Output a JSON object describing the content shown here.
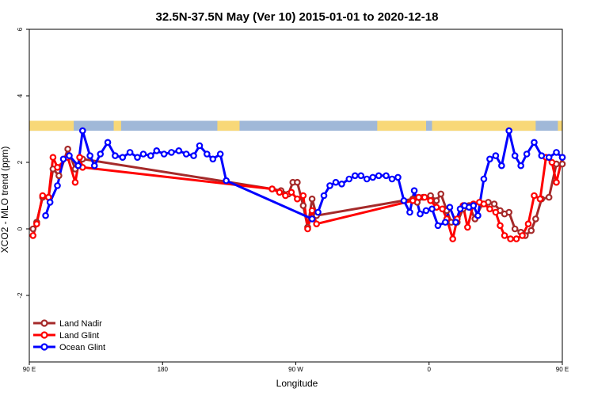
{
  "chart_data": {
    "type": "line",
    "title": "32.5N-37.5N May (Ver 10)   2015-01-01 to 2020-12-18",
    "xlabel": "Longitude",
    "ylabel": "XCO2 - MLO trend (ppm)",
    "xlim": [
      90,
      450
    ],
    "ylim": [
      -4,
      6
    ],
    "x_ticks": [
      {
        "value": 90,
        "label": "90 E"
      },
      {
        "value": 180,
        "label": "180"
      },
      {
        "value": 270,
        "label": "90 W"
      },
      {
        "value": 360,
        "label": "0"
      },
      {
        "value": 450,
        "label": "90 E"
      }
    ],
    "y_ticks": [
      {
        "value": -2,
        "label": "-2"
      },
      {
        "value": 0,
        "label": "0"
      },
      {
        "value": 2,
        "label": "2"
      },
      {
        "value": 4,
        "label": "4"
      },
      {
        "value": 6,
        "label": "6"
      }
    ],
    "land_ocean_strip": {
      "y_range": [
        2.95,
        3.25
      ],
      "ocean_color": "#a0b8d8",
      "land_color": "#f8d878",
      "land_segments": [
        [
          90,
          120
        ],
        [
          147,
          152
        ],
        [
          217,
          232
        ],
        [
          325,
          358
        ],
        [
          362,
          432
        ],
        [
          447,
          450
        ]
      ]
    },
    "legend": {
      "position": "bottom-left",
      "entries": [
        "Land Nadir",
        "Land Glint",
        "Ocean Glint"
      ]
    },
    "series": [
      {
        "name": "Land Nadir",
        "color": "#a52a2a",
        "points": [
          [
            92.5,
            0.0
          ],
          [
            95,
            0.2
          ],
          [
            99,
            0.95
          ],
          [
            103,
            0.95
          ],
          [
            106,
            1.8
          ],
          [
            110,
            1.6
          ],
          [
            116,
            2.4
          ],
          [
            121,
            1.8
          ],
          [
            126,
            2.1
          ],
          [
            254,
            1.2
          ],
          [
            260,
            1.15
          ],
          [
            265,
            1.05
          ],
          [
            268,
            1.4
          ],
          [
            271,
            1.4
          ],
          [
            275,
            0.7
          ],
          [
            278,
            0.05
          ],
          [
            281,
            0.9
          ],
          [
            284,
            0.4
          ],
          [
            349,
            0.9
          ],
          [
            352,
            0.8
          ],
          [
            356,
            0.95
          ],
          [
            361,
            1.0
          ],
          [
            365,
            0.85
          ],
          [
            368,
            1.05
          ],
          [
            372,
            0.55
          ],
          [
            375,
            0.2
          ],
          [
            379,
            0.2
          ],
          [
            383,
            0.6
          ],
          [
            387,
            0.7
          ],
          [
            391,
            0.3
          ],
          [
            396,
            0.75
          ],
          [
            400,
            0.8
          ],
          [
            404,
            0.75
          ],
          [
            408,
            0.55
          ],
          [
            411,
            0.45
          ],
          [
            414,
            0.5
          ],
          [
            418,
            0.0
          ],
          [
            422,
            -0.1
          ],
          [
            425,
            -0.2
          ],
          [
            429,
            -0.05
          ],
          [
            432,
            0.3
          ],
          [
            436,
            0.9
          ],
          [
            441,
            0.95
          ],
          [
            446,
            1.95
          ],
          [
            450,
            1.95
          ]
        ]
      },
      {
        "name": "Land Glint",
        "color": "#ff0000",
        "points": [
          [
            92.5,
            -0.2
          ],
          [
            95,
            0.15
          ],
          [
            99,
            1.0
          ],
          [
            103,
            0.95
          ],
          [
            106,
            2.15
          ],
          [
            109,
            1.85
          ],
          [
            116,
            2.15
          ],
          [
            121,
            1.4
          ],
          [
            124,
            2.15
          ],
          [
            126,
            1.85
          ],
          [
            254,
            1.2
          ],
          [
            259,
            1.1
          ],
          [
            263,
            1.0
          ],
          [
            267,
            1.1
          ],
          [
            271,
            0.9
          ],
          [
            275,
            1.0
          ],
          [
            278,
            0.0
          ],
          [
            281,
            0.55
          ],
          [
            284,
            0.15
          ],
          [
            349,
            0.85
          ],
          [
            353,
            0.95
          ],
          [
            357,
            0.95
          ],
          [
            361,
            0.85
          ],
          [
            365,
            0.65
          ],
          [
            369,
            0.6
          ],
          [
            372,
            0.3
          ],
          [
            376,
            -0.3
          ],
          [
            379,
            0.3
          ],
          [
            383,
            0.7
          ],
          [
            386,
            0.05
          ],
          [
            390,
            0.75
          ],
          [
            394,
            0.8
          ],
          [
            397,
            0.75
          ],
          [
            401,
            0.6
          ],
          [
            405,
            0.5
          ],
          [
            408,
            0.1
          ],
          [
            411,
            -0.2
          ],
          [
            415,
            -0.3
          ],
          [
            419,
            -0.3
          ],
          [
            423,
            -0.2
          ],
          [
            427,
            0.15
          ],
          [
            431,
            1.0
          ],
          [
            435,
            0.9
          ],
          [
            439,
            2.15
          ],
          [
            443,
            2.0
          ],
          [
            446,
            1.4
          ],
          [
            450,
            2.15
          ]
        ]
      },
      {
        "name": "Ocean Glint",
        "color": "#0000ff",
        "points": [
          [
            101,
            0.4
          ],
          [
            104,
            0.8
          ],
          [
            109,
            1.3
          ],
          [
            113,
            2.1
          ],
          [
            117,
            2.2
          ],
          [
            123,
            1.9
          ],
          [
            126,
            2.95
          ],
          [
            131,
            2.2
          ],
          [
            134,
            1.9
          ],
          [
            138,
            2.25
          ],
          [
            143,
            2.6
          ],
          [
            148,
            2.2
          ],
          [
            153,
            2.15
          ],
          [
            158,
            2.3
          ],
          [
            163,
            2.15
          ],
          [
            167,
            2.25
          ],
          [
            172,
            2.2
          ],
          [
            176,
            2.35
          ],
          [
            181,
            2.25
          ],
          [
            186,
            2.3
          ],
          [
            191,
            2.35
          ],
          [
            196,
            2.25
          ],
          [
            201,
            2.2
          ],
          [
            205,
            2.5
          ],
          [
            210,
            2.25
          ],
          [
            214,
            2.1
          ],
          [
            219,
            2.25
          ],
          [
            223,
            1.45
          ],
          [
            281,
            0.3
          ],
          [
            285,
            0.5
          ],
          [
            289,
            1.0
          ],
          [
            293,
            1.3
          ],
          [
            297,
            1.4
          ],
          [
            301,
            1.35
          ],
          [
            306,
            1.5
          ],
          [
            310,
            1.6
          ],
          [
            314,
            1.6
          ],
          [
            318,
            1.5
          ],
          [
            322,
            1.55
          ],
          [
            326,
            1.6
          ],
          [
            331,
            1.6
          ],
          [
            335,
            1.5
          ],
          [
            339,
            1.55
          ],
          [
            343,
            0.85
          ],
          [
            347,
            0.5
          ],
          [
            350,
            1.15
          ],
          [
            354,
            0.45
          ],
          [
            358,
            0.55
          ],
          [
            362,
            0.6
          ],
          [
            366,
            0.1
          ],
          [
            371,
            0.2
          ],
          [
            374,
            0.65
          ],
          [
            378,
            0.2
          ],
          [
            381,
            0.6
          ],
          [
            384,
            0.7
          ],
          [
            387,
            0.65
          ],
          [
            390,
            0.7
          ],
          [
            393,
            0.4
          ],
          [
            397,
            1.5
          ],
          [
            401,
            2.1
          ],
          [
            405,
            2.2
          ],
          [
            409,
            1.9
          ],
          [
            414,
            2.95
          ],
          [
            418,
            2.2
          ],
          [
            422,
            1.9
          ],
          [
            426,
            2.25
          ],
          [
            431,
            2.6
          ],
          [
            436,
            2.2
          ],
          [
            441,
            2.15
          ],
          [
            446,
            2.3
          ],
          [
            450,
            2.15
          ]
        ]
      }
    ]
  }
}
